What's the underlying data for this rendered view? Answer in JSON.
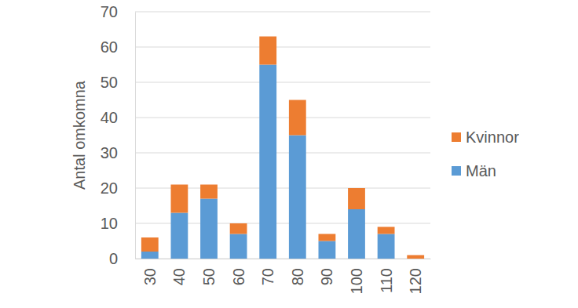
{
  "chart_data": {
    "type": "bar",
    "stacked": true,
    "grid": true,
    "legend": "right",
    "y_label": "Antal omkomna",
    "categories": [
      "30",
      "40",
      "50",
      "60",
      "70",
      "80",
      "90",
      "100",
      "110",
      "120"
    ],
    "series": [
      {
        "name": "Män",
        "color": "#5b9bd5",
        "values": [
          2,
          13,
          17,
          7,
          55,
          35,
          5,
          14,
          7,
          0
        ]
      },
      {
        "name": "Kvinnor",
        "color": "#ed7d31",
        "values": [
          4,
          8,
          4,
          3,
          8,
          10,
          2,
          6,
          2,
          1
        ]
      }
    ],
    "ylim": [
      0,
      70
    ],
    "yticks": [
      0,
      10,
      20,
      30,
      40,
      50,
      60,
      70
    ]
  }
}
